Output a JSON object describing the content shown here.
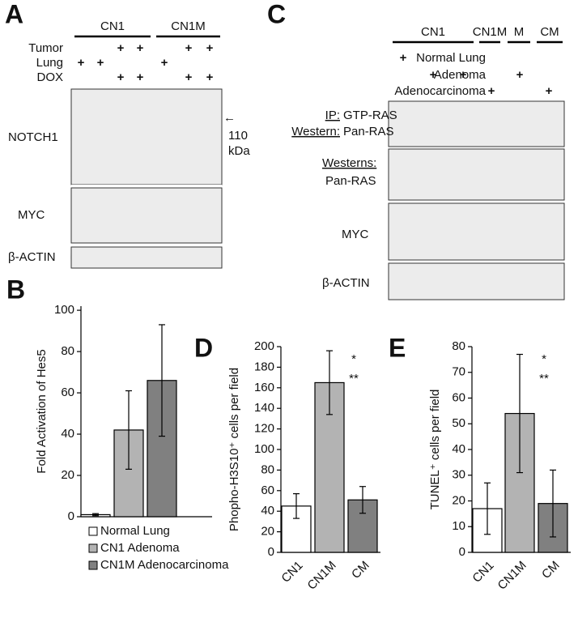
{
  "blots": {
    "A": {
      "letter": "A",
      "groups": [
        "CN1",
        "CN1M"
      ],
      "rows": [
        {
          "label": "Tumor",
          "marks": [
            null,
            null,
            "+",
            "+",
            null,
            "+",
            "+"
          ]
        },
        {
          "label": "Lung",
          "marks": [
            "+",
            "+",
            null,
            null,
            "+",
            null,
            null
          ]
        },
        {
          "label": "DOX",
          "marks": [
            null,
            null,
            "+",
            "+",
            null,
            "+",
            "+"
          ]
        }
      ],
      "panels": [
        {
          "label": "NOTCH1"
        },
        {
          "label": "MYC"
        },
        {
          "label": "β-ACTIN"
        }
      ],
      "marker": {
        "arrow": "←",
        "size": "110",
        "unit": "kDa"
      }
    },
    "C": {
      "letter": "C",
      "groups": [
        "CN1",
        "CN1M",
        "M",
        "CM"
      ],
      "rows": [
        {
          "label": "Normal Lung",
          "marks": [
            "+",
            null,
            null,
            null,
            null,
            null
          ]
        },
        {
          "label": "Adenoma",
          "marks": [
            null,
            "+",
            "+",
            null,
            "+",
            null
          ]
        },
        {
          "label": "Adenocarcinoma",
          "marks": [
            null,
            null,
            null,
            "+",
            null,
            "+"
          ]
        }
      ],
      "panels": [
        {
          "prefix": "IP:",
          "label": "GTP-RAS",
          "prefix2": "Western:",
          "label2": "Pan-RAS"
        },
        {
          "prefix": "Westerns:",
          "label": "Pan-RAS"
        },
        {
          "label": "MYC"
        },
        {
          "label": "β-ACTIN"
        }
      ]
    }
  },
  "chart_data": [
    {
      "type": "bar",
      "panel": "B",
      "y_label": "Fold Activation of Hes5",
      "categories": [
        "Normal Lung",
        "CN1 Adenoma",
        "CN1M Adenocarcinoma"
      ],
      "values": [
        1,
        42,
        66
      ],
      "errors": [
        0.5,
        19,
        27
      ],
      "colors": [
        "#ffffff",
        "#b3b3b3",
        "#808080"
      ],
      "ylim": [
        0,
        102
      ],
      "yticks": [
        0,
        20,
        40,
        60,
        80,
        100
      ],
      "legend": true
    },
    {
      "type": "bar",
      "panel": "D",
      "y_label": "Phopho-H3S10⁺ cells per field",
      "categories": [
        "CN1",
        "CN1M",
        "CM"
      ],
      "values": [
        45,
        165,
        51
      ],
      "errors": [
        12,
        31,
        13
      ],
      "colors": [
        "#ffffff",
        "#b3b3b3",
        "#808080"
      ],
      "ylim": [
        0,
        200
      ],
      "yticks": [
        0,
        20,
        40,
        60,
        80,
        100,
        120,
        140,
        160,
        180,
        200
      ],
      "annotations": [
        "*",
        "**"
      ]
    },
    {
      "type": "bar",
      "panel": "E",
      "y_label": "TUNEL⁺ cells per field",
      "categories": [
        "CN1",
        "CN1M",
        "CM"
      ],
      "values": [
        17,
        54,
        19
      ],
      "errors": [
        10,
        23,
        13
      ],
      "colors": [
        "#ffffff",
        "#b3b3b3",
        "#808080"
      ],
      "ylim": [
        0,
        80
      ],
      "yticks": [
        0,
        10,
        20,
        30,
        40,
        50,
        60,
        70,
        80
      ],
      "annotations": [
        "*",
        "**"
      ]
    }
  ]
}
